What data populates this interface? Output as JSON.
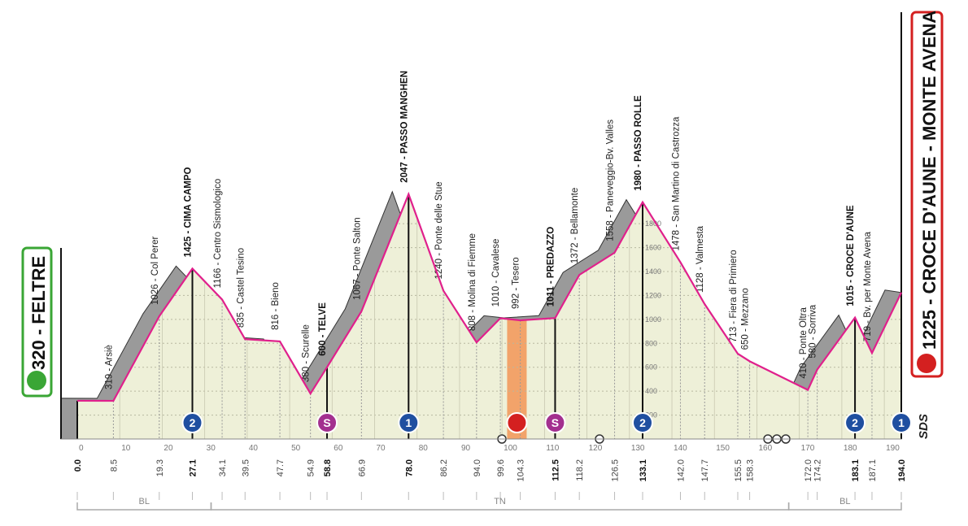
{
  "chart_data": {
    "type": "area",
    "x": [
      {
        "value": 0,
        "label": "0.0"
      },
      8.5,
      19.3,
      27.1,
      34.1,
      39.5,
      47.7,
      54.9,
      58.8,
      66.9,
      {
        "value": 78,
        "label": "78.0"
      },
      86.2,
      {
        "value": 94,
        "label": "94.0"
      },
      99.6,
      104.3,
      112.5,
      118.2,
      126.5,
      133.1,
      {
        "value": 142,
        "label": "142.0"
      },
      147.7,
      155.5,
      158.3,
      {
        "value": 172,
        "label": "172.0"
      },
      174.2,
      183.1,
      187.1,
      {
        "value": 194,
        "label": "194.0"
      }
    ],
    "values": [
      320,
      319,
      1026,
      1425,
      1166,
      835,
      816,
      380,
      600,
      1067,
      2047,
      1240,
      808,
      1010,
      992,
      1011,
      1372,
      1558,
      1980,
      1478,
      1128,
      713,
      650,
      410,
      580,
      1015,
      719,
      1225
    ],
    "labels": [
      "320 - FELTRE",
      "319 - Arsiè",
      "1026 - Col Perer",
      "1425 - CIMA CAMPO",
      "1166 - Centro Sismologico",
      "835 - Castel Tesino",
      "816 - Bieno",
      "380 - Scurelle",
      "600 - TELVE",
      "1067 - Ponte Salton",
      "2047 - PASSO MANGHEN",
      "1240 - Ponte delle Stue",
      "808 - Molina di Fiemme",
      "1010 - Cavalese",
      "992 - Tesero",
      "1011 - PREDAZZO",
      "1372 - Bellamonte",
      "1558 - Paneveggio-Bv. Valles",
      "1980 - PASSO ROLLE",
      "1478 - San Martino di Castrozza",
      "1128 - Valmesta",
      "713 - Fiera di Primiero",
      "650 - Mezzano",
      "410 - Ponte Oltra",
      "580 - Sorriva",
      "1015 - CROCE D'AUNE",
      "719 - Bv. per Monte Avena",
      "1225 - CROCE D'AUNE - MONTE AVENA"
    ],
    "xlim": [
      0,
      194
    ],
    "ylim": [
      0,
      2100
    ],
    "xticks": [
      0,
      10,
      20,
      30,
      40,
      50,
      60,
      70,
      80,
      90,
      100,
      110,
      120,
      130,
      140,
      150,
      160,
      170,
      180,
      190
    ],
    "yticks": [
      200,
      400,
      600,
      800,
      1000,
      1200,
      1400,
      1600,
      1800
    ],
    "color": "#e0208c",
    "markers": [
      {
        "km": 27.1,
        "label": "2",
        "color": "#1f4fa0"
      },
      {
        "km": 58.8,
        "label": "S",
        "color": "#a3308f"
      },
      {
        "km": 78.0,
        "label": "1",
        "color": "#1f4fa0"
      },
      {
        "km": 112.5,
        "label": "S",
        "color": "#a3308f"
      },
      {
        "km": 133.1,
        "label": "2",
        "color": "#1f4fa0"
      },
      {
        "km": 183.1,
        "label": "2",
        "color": "#1f4fa0"
      },
      {
        "km": 194.0,
        "label": "1",
        "color": "#1f4fa0"
      }
    ],
    "feed_zone": [
      101.2,
      105.8
    ],
    "regions": [
      {
        "label": "BL",
        "range": [
          0,
          31.5
        ]
      },
      {
        "label": "TN",
        "range": [
          31.5,
          167.5
        ]
      },
      {
        "label": "BL",
        "range": [
          167.5,
          194
        ]
      }
    ],
    "logo": "SDS"
  }
}
